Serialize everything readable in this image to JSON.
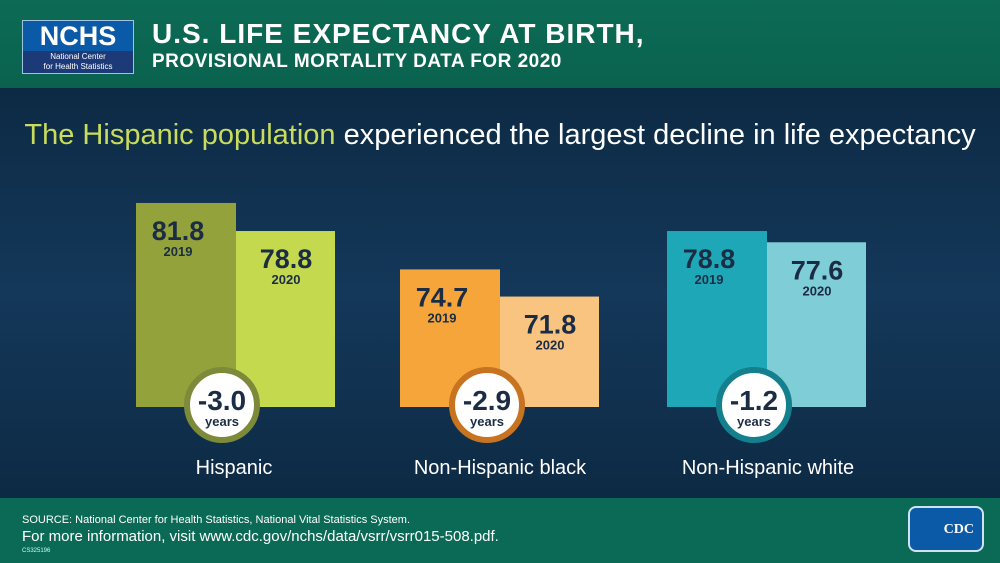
{
  "header": {
    "logo_main": "NCHS",
    "logo_sub1": "National Center",
    "logo_sub2": "for Health Statistics",
    "title": "U.S. LIFE EXPECTANCY AT BIRTH,",
    "subtitle": "PROVISIONAL MORTALITY DATA FOR 2020"
  },
  "footer": {
    "source": "SOURCE: National Center for Health Statistics, National Vital Statistics System.",
    "info": "For more information, visit www.cdc.gov/nchs/data/vsrr/vsrr015-508.pdf.",
    "code": "CS325196",
    "cdc_logo": "CDC"
  },
  "chart_data": {
    "type": "bar",
    "title_highlight": "The Hispanic population",
    "title_rest": "experienced the largest decline in life expectancy",
    "categories": [
      "Hispanic",
      "Non-Hispanic black",
      "Non-Hispanic white"
    ],
    "series": [
      {
        "name": "2019",
        "values": [
          81.8,
          74.7,
          78.8
        ]
      },
      {
        "name": "2020",
        "values": [
          78.8,
          71.8,
          77.6
        ]
      }
    ],
    "changes": [
      "-3.0",
      "-2.9",
      "-1.2"
    ],
    "change_unit": "years",
    "ylim": [
      60,
      85
    ],
    "colors": {
      "2019": [
        "#94a23c",
        "#f5a53a",
        "#1ea7b7"
      ],
      "2020": [
        "#c5d94f",
        "#f9c47f",
        "#7fcdd6"
      ],
      "ring": [
        "#7d8a3a",
        "#c8731f",
        "#14808d"
      ]
    }
  }
}
